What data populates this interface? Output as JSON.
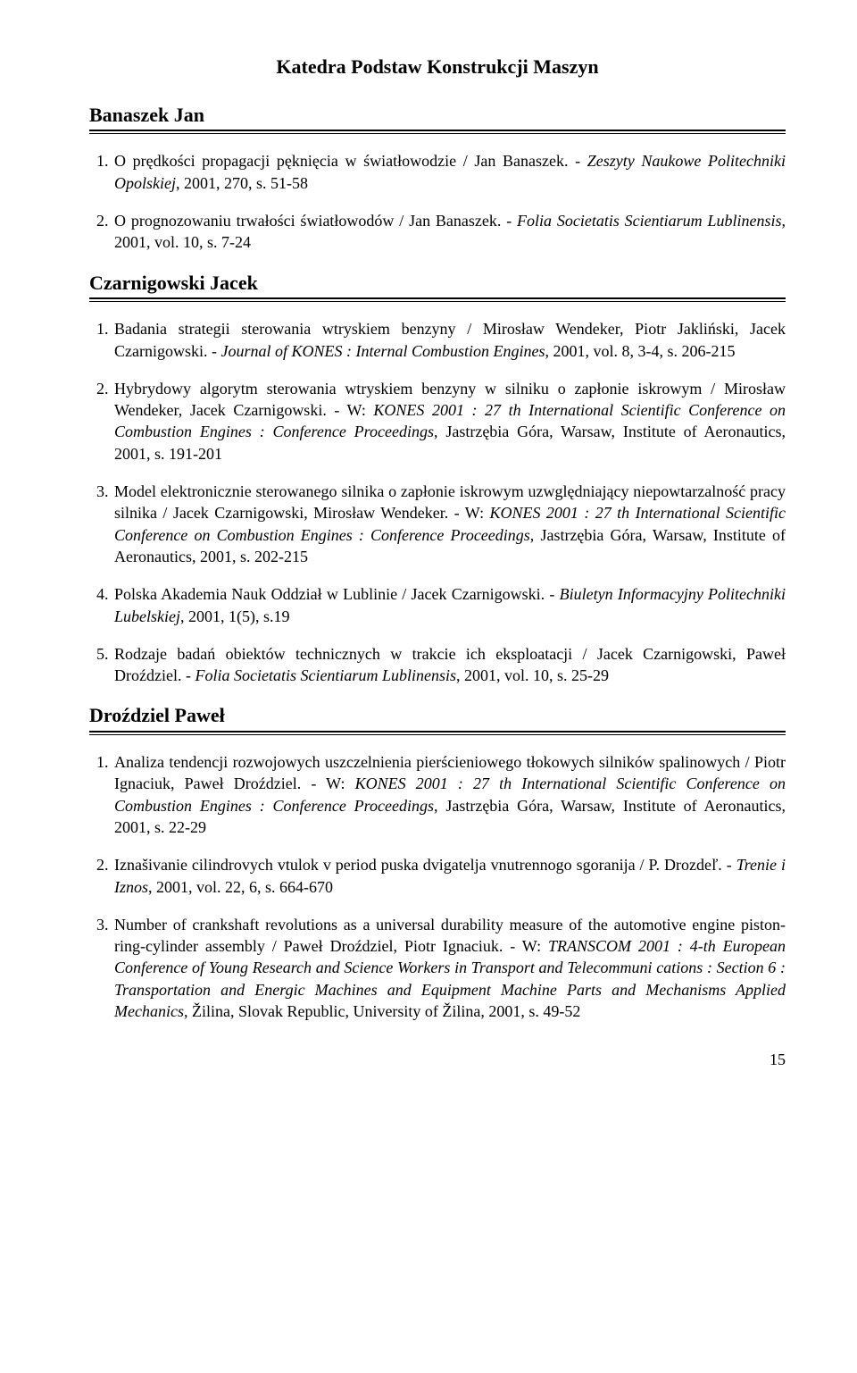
{
  "department_title": "Katedra Podstaw Konstrukcji Maszyn",
  "authors": {
    "banaszek": {
      "name": "Banaszek Jan"
    },
    "czarnigowski": {
      "name": "Czarnigowski Jacek"
    },
    "drozdziel": {
      "name": "Droździel Paweł"
    }
  },
  "entries": {
    "b1_t": "O prędkości propagacji pęknięcia w światłowodzie / Jan Banaszek. - ",
    "b1_i": "Zeszyty Naukowe Politechniki Opolskiej",
    "b1_r": ", 2001, 270, s. 51-58",
    "b2_t": "O prognozowaniu trwałości światłowodów / Jan Banaszek. - ",
    "b2_i": "Folia Societatis Scientiarum Lublinensis",
    "b2_r": ", 2001, vol. 10, s. 7-24",
    "c1_t": "Badania strategii sterowania wtryskiem benzyny  / Mirosław Wendeker, Piotr Jakliński, Jacek Czarnigowski. - ",
    "c1_i": "Journal of KONES : Internal  Combustion  Engines",
    "c1_r": ", 2001, vol. 8, 3-4, s. 206-215",
    "c2_t": "Hybrydowy algorytm sterowania wtryskiem benzyny w silniku o zapłonie iskrowym / Mirosław Wendeker, Jacek Czarnigowski. - W: ",
    "c2_i": "KONES 2001 : 27 th International Scientific Conference on Combustion Engines : Conference Proceedings",
    "c2_r": ", Jastrzębia Góra, Warsaw, Institute of Aeronautics, 2001, s. 191-201",
    "c3_t": "Model elektronicznie sterowanego silnika o zapłonie iskrowym uzwględniający niepowtarzalność pracy silnika / Jacek Czarnigowski, Mirosław Wendeker. - W: ",
    "c3_i": "KONES 2001 : 27 th International Scientific Conference on Combustion Engines : Conference Proceedings",
    "c3_r": ", Jastrzębia Góra, Warsaw, Institute of Aeronautics, 2001, s. 202-215",
    "c4_t": "Polska Akademia Nauk Oddział w Lublinie  / Jacek Czarnigowski. -  ",
    "c4_i": "Biuletyn Informacyjny Politechniki Lubelskiej",
    "c4_r": ", 2001, 1(5), s.19",
    "c5_t": "Rodzaje badań obiektów technicznych w trakcie ich eksploatacji / Jacek Czarnigowski, Paweł Droździel. - ",
    "c5_i": "Folia Societatis Scientiarum Lublinensis",
    "c5_r": ", 2001, vol. 10, s. 25-29",
    "d1_t": "Analiza tendencji rozwojowych uszczelnienia pierścieniowego tłokowych silników spalinowych / Piotr Ignaciuk, Paweł Droździel. - W: ",
    "d1_i": "KONES 2001 : 27 th International Scientific Conference on Combustion Engines : Conference Proceedings",
    "d1_r": ", Jastrzębia Góra, Warsaw, Institute of Aeronautics, 2001, s. 22-29",
    "d2_t": "Iznašivanie cilindrovych vtulok v period puska dvigatelja vnutrennogo sgoranija / P. Drozdeľ. - ",
    "d2_i": "Trenie i Iznos",
    "d2_r": ", 2001, vol. 22, 6, s. 664-670",
    "d3_t": "Number of crankshaft revolutions as a universal durability measure of the automotive engine piston-ring-cylinder assembly / Paweł Droździel, Piotr Ignaciuk. - W: ",
    "d3_i": "TRANSCOM 2001 : 4-th European Conference of Young Research and Science Workers in Transport and Telecommuni cations : Section 6 : Transportation and Energic Machines and Equipment Machine Parts and Mechanisms Applied Mechanics",
    "d3_r": ", Žilina, Slovak Republic, University of Žilina, 2001, s. 49-52"
  },
  "page_number": "15",
  "style": {
    "text_color": "#000000",
    "background_color": "#ffffff",
    "body_font_size_pt": 14,
    "heading_font_size_pt": 16,
    "font_family": "Times New Roman"
  }
}
